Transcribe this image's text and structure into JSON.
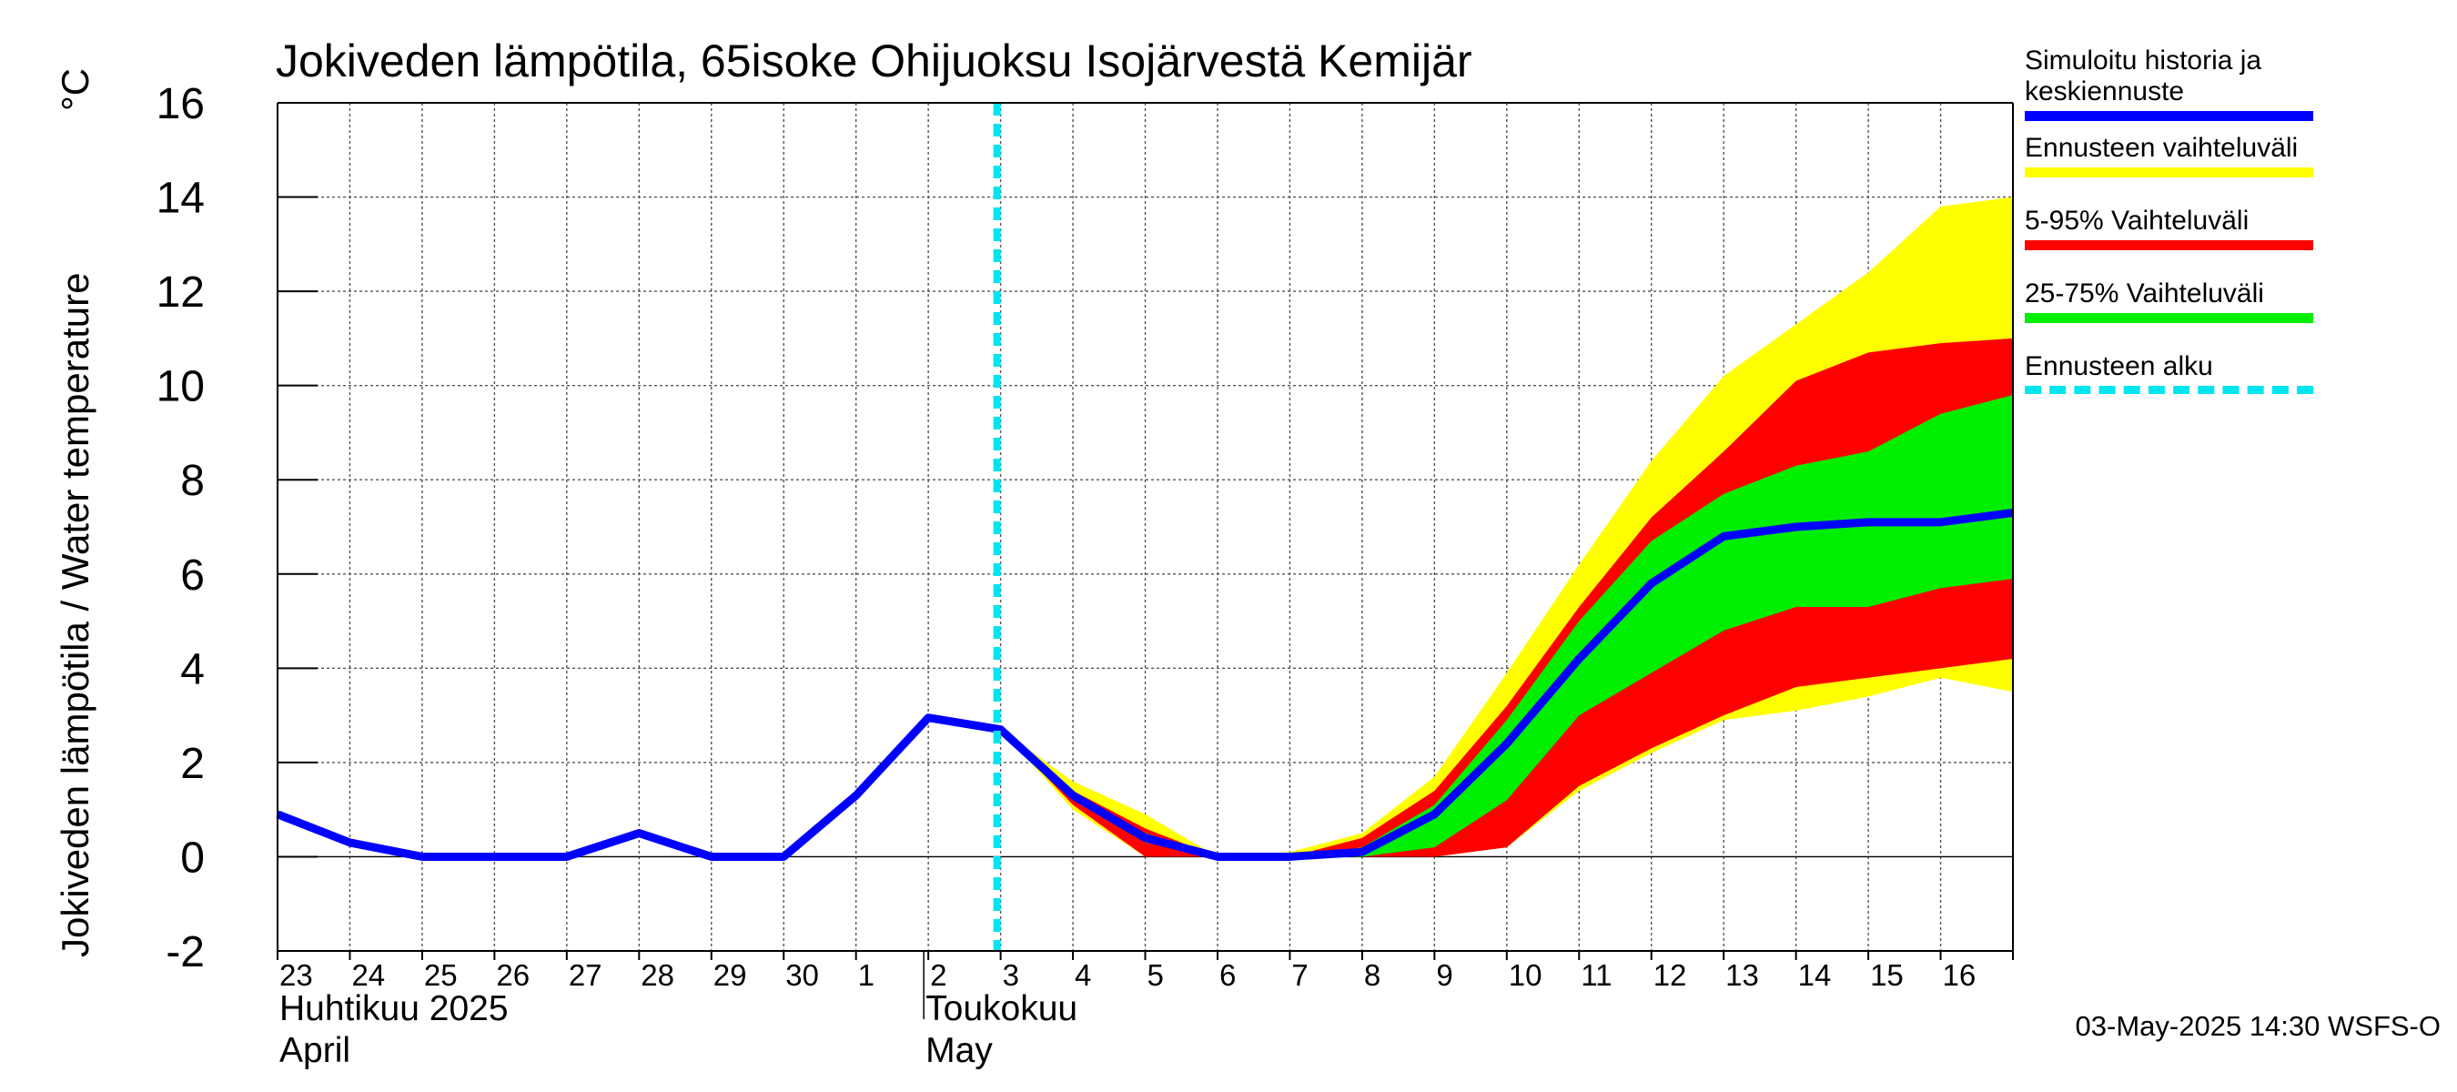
{
  "chart_data": {
    "type": "line",
    "title": "Jokiveden lämpötila, 65isoke Ohijuoksu Isojärvestä Kemijär",
    "ylabel": "Jokiveden lämpötila / Water temperature",
    "yunit": "°C",
    "ylim": [
      -2,
      16
    ],
    "yticks": [
      -2,
      0,
      2,
      4,
      6,
      8,
      10,
      12,
      14,
      16
    ],
    "xlim": [
      "2025-04-23",
      "2025-05-17"
    ],
    "grid": true,
    "x_tick_labels": [
      "23",
      "24",
      "25",
      "26",
      "27",
      "28",
      "29",
      "30",
      "1",
      "2",
      "3",
      "4",
      "5",
      "6",
      "7",
      "8",
      "9",
      "10",
      "11",
      "12",
      "13",
      "14",
      "15",
      "16"
    ],
    "month_labels": [
      {
        "fi": "Huhtikuu  2025",
        "en": "April",
        "start": "2025-04-23"
      },
      {
        "fi": "Toukokuu",
        "en": "May",
        "start": "2025-05-02"
      }
    ],
    "forecast_start": "2025-05-03",
    "legend_placement": "right",
    "x": [
      "2025-04-23",
      "2025-04-24",
      "2025-04-25",
      "2025-04-26",
      "2025-04-27",
      "2025-04-28",
      "2025-04-29",
      "2025-04-30",
      "2025-05-01",
      "2025-05-02",
      "2025-05-03",
      "2025-05-04",
      "2025-05-05",
      "2025-05-06",
      "2025-05-07",
      "2025-05-08",
      "2025-05-09",
      "2025-05-10",
      "2025-05-11",
      "2025-05-12",
      "2025-05-13",
      "2025-05-14",
      "2025-05-15",
      "2025-05-16",
      "2025-05-17"
    ],
    "series": [
      {
        "name": "Simuloitu historia ja keskiennuste",
        "color": "#0000ff",
        "values": [
          0.9,
          0.3,
          0.0,
          0.0,
          0.0,
          0.5,
          0.0,
          0.0,
          1.3,
          2.95,
          2.7,
          1.3,
          0.4,
          0.0,
          0.0,
          0.1,
          0.9,
          2.4,
          4.2,
          5.8,
          6.8,
          7.0,
          7.1,
          7.1,
          7.3
        ]
      },
      {
        "name": "Ennusteen vaihteluväli",
        "color": "#ffff00",
        "lower": [
          null,
          null,
          null,
          null,
          null,
          null,
          null,
          null,
          null,
          null,
          2.7,
          1.0,
          0.0,
          0.0,
          0.0,
          0.0,
          0.0,
          0.2,
          1.4,
          2.2,
          2.9,
          3.1,
          3.4,
          3.8,
          3.5
        ],
        "upper": [
          null,
          null,
          null,
          null,
          null,
          null,
          null,
          null,
          null,
          null,
          2.7,
          1.6,
          0.9,
          0.0,
          0.1,
          0.5,
          1.7,
          3.9,
          6.2,
          8.4,
          10.2,
          11.3,
          12.4,
          13.8,
          14.0
        ]
      },
      {
        "name": "5-95% Vaihteluväli",
        "color": "#ff0000",
        "lower": [
          null,
          null,
          null,
          null,
          null,
          null,
          null,
          null,
          null,
          null,
          2.7,
          1.1,
          0.0,
          0.0,
          0.0,
          0.0,
          0.0,
          0.2,
          1.5,
          2.3,
          3.0,
          3.6,
          3.8,
          4.0,
          4.2
        ],
        "upper": [
          null,
          null,
          null,
          null,
          null,
          null,
          null,
          null,
          null,
          null,
          2.7,
          1.4,
          0.6,
          0.0,
          0.0,
          0.4,
          1.4,
          3.2,
          5.3,
          7.2,
          8.6,
          10.1,
          10.7,
          10.9,
          11.0
        ]
      },
      {
        "name": "25-75% Vaihteluväli",
        "color": "#00ee00",
        "lower": [
          null,
          null,
          null,
          null,
          null,
          null,
          null,
          null,
          null,
          null,
          2.7,
          1.2,
          0.3,
          0.0,
          0.0,
          0.0,
          0.2,
          1.2,
          3.0,
          3.9,
          4.8,
          5.3,
          5.3,
          5.7,
          5.9
        ],
        "upper": [
          null,
          null,
          null,
          null,
          null,
          null,
          null,
          null,
          null,
          null,
          2.7,
          1.3,
          0.5,
          0.0,
          0.0,
          0.2,
          1.1,
          2.9,
          5.0,
          6.7,
          7.7,
          8.3,
          8.6,
          9.4,
          9.8
        ]
      }
    ],
    "forecast_start_label": "Ennusteen alku",
    "forecast_start_color": "#00e6f0"
  },
  "legend": {
    "items": [
      {
        "label": "Simuloitu historia ja keskiennuste",
        "color": "#0000ff",
        "style": "solid"
      },
      {
        "label": "Ennusteen vaihteluväli",
        "color": "#ffff00",
        "style": "solid"
      },
      {
        "label": "5-95% Vaihteluväli",
        "color": "#ff0000",
        "style": "solid"
      },
      {
        "label": "25-75% Vaihteluväli",
        "color": "#00ee00",
        "style": "solid"
      },
      {
        "label": "Ennusteen alku",
        "color": "#00e6f0",
        "style": "dashed"
      }
    ]
  },
  "footer": "03-May-2025 14:30 WSFS-O"
}
